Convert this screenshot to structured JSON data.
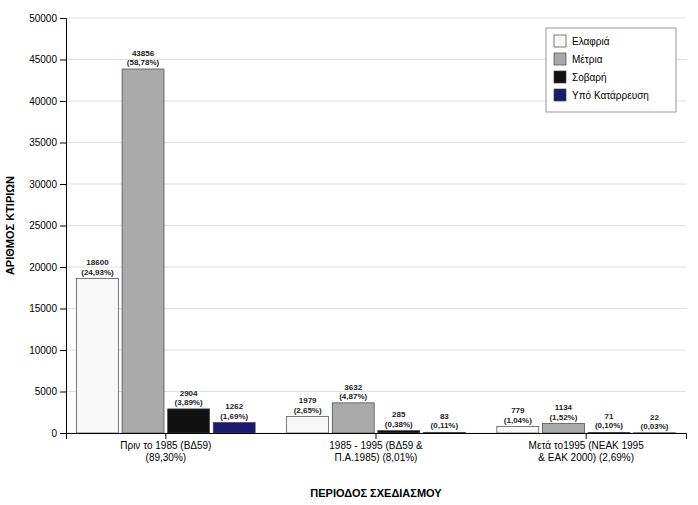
{
  "chart_data": {
    "type": "bar",
    "categories": [
      "Πριν το 1985 (ΒΔ59)\n(89,30%)",
      "1985 - 1995 (ΒΔ59 &\nΠ.Α.1985) (8,01%)",
      "Μετά το1995 (ΝΕΑΚ 1995\n& ΕΑΚ 2000) (2,69%)"
    ],
    "series": [
      {
        "name": "Ελαφριά",
        "color": "#f8f8f8",
        "values": [
          18600,
          1979,
          779
        ],
        "pcts": [
          "(24,93%)",
          "(2,65%)",
          "(1,04%)"
        ]
      },
      {
        "name": "Μέτρια",
        "color": "#aaaaaa",
        "values": [
          43856,
          3632,
          1134
        ],
        "pcts": [
          "(58,78%)",
          "(4,87%)",
          "(1,52%)"
        ]
      },
      {
        "name": "Σοβαρή",
        "color": "#111111",
        "values": [
          2904,
          285,
          71
        ],
        "pcts": [
          "(3,89%)",
          "(0,38%)",
          "(0,10%)"
        ]
      },
      {
        "name": "Υπό Κατάρρευση",
        "color": "#1a1a6e",
        "values": [
          1262,
          83,
          22
        ],
        "pcts": [
          "(1,69%)",
          "(0,11%)",
          "(0,03%)"
        ]
      }
    ],
    "xlabel": "ΠΕΡΙΟΔΟΣ ΣΧΕΔΙΑΣΜΟΥ",
    "ylabel": "ΑΡΙΘΜΟΣ ΚΤΙΡΙΩΝ",
    "ylim": [
      0,
      50000
    ],
    "yticks": [
      0,
      5000,
      10000,
      15000,
      20000,
      25000,
      30000,
      35000,
      40000,
      45000,
      50000
    ],
    "grid": true,
    "legend": "upper right",
    "data_labels": true
  }
}
